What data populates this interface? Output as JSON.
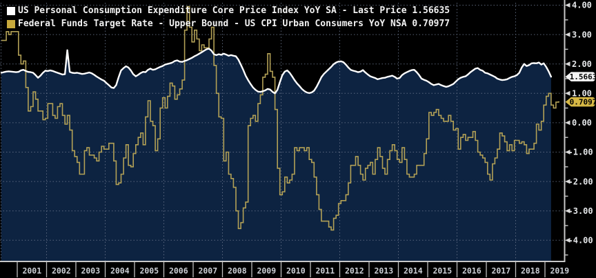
{
  "legend": {
    "items": [
      {
        "label": "US Personal Consumption Expenditure Core Price Index YoY SA - Last Price 1.56635",
        "swatch_color": "#ffffff"
      },
      {
        "label": "Federal Funds Target Rate - Upper Bound - US CPI Urban Consumers YoY NSA 0.70977",
        "swatch_color": "#c7a93c"
      }
    ]
  },
  "right_axis": {
    "tick_labels": [
      "4.00",
      "3.00",
      "2.00",
      "1.00",
      "0.00",
      "-1.00",
      "-2.00",
      "-3.00",
      "-4.00"
    ],
    "tick_values": [
      4,
      3,
      2,
      1,
      0,
      -1,
      -2,
      -3,
      -4
    ],
    "minor_tick_values": [
      3.5,
      2.5,
      1.5,
      0.5,
      -0.5,
      -1.5,
      -2.5,
      -3.5,
      -4.5
    ],
    "badges": [
      {
        "text": "1.5663",
        "value": 1.56635,
        "bg": "#f4f4f4",
        "fg": "#000000"
      },
      {
        "text": "0.7097",
        "value": 0.70977,
        "bg": "#d6b845",
        "fg": "#000000"
      }
    ]
  },
  "x_axis": {
    "year_labels": [
      "2001",
      "2002",
      "2003",
      "2004",
      "2005",
      "2006",
      "2007",
      "2008",
      "2009",
      "2010",
      "2011",
      "2012",
      "2013",
      "2014",
      "2015",
      "2016",
      "2017",
      "2018",
      "2019"
    ],
    "gridline_years": [
      2002,
      2004,
      2006,
      2008,
      2010,
      2012,
      2014,
      2016,
      2018
    ]
  },
  "colors": {
    "background": "#000000",
    "area_fill": "#0d2341",
    "white_line": "#ffffff",
    "gold_line": "#b3a156",
    "gridline": "#68748a",
    "axis_line": "#c8c8c8",
    "axis_text": "#e4e6e8",
    "year_text": "#ccd0d6"
  },
  "chart_data": {
    "type": "line",
    "title": "",
    "ylim": [
      -4.7,
      4.1
    ],
    "y_tick_step": 1,
    "x_range_years": [
      2000.45,
      2019.6
    ],
    "grid": "dotted",
    "legend_position": "top-left",
    "series": [
      {
        "name": "US Personal Consumption Expenditure Core Price Index YoY SA",
        "last_price": 1.56635,
        "axis_badge": "1.5663",
        "style": "line_area",
        "color": "#ffffff",
        "fill": "#0d2341",
        "start_month": "2000-06",
        "freq": "monthly",
        "values": [
          1.7,
          1.72,
          1.74,
          1.75,
          1.74,
          1.73,
          1.72,
          1.73,
          1.78,
          1.8,
          1.76,
          1.73,
          1.72,
          1.7,
          1.62,
          1.53,
          1.6,
          1.7,
          1.77,
          1.76,
          1.78,
          1.76,
          1.73,
          1.7,
          1.67,
          1.64,
          1.65,
          2.47,
          1.73,
          1.7,
          1.69,
          1.7,
          1.68,
          1.66,
          1.67,
          1.69,
          1.71,
          1.68,
          1.63,
          1.57,
          1.52,
          1.47,
          1.43,
          1.35,
          1.28,
          1.2,
          1.18,
          1.28,
          1.55,
          1.78,
          1.86,
          1.92,
          1.88,
          1.78,
          1.65,
          1.58,
          1.63,
          1.69,
          1.73,
          1.72,
          1.8,
          1.84,
          1.8,
          1.82,
          1.86,
          1.9,
          1.93,
          1.98,
          2.0,
          2.02,
          2.05,
          2.1,
          2.12,
          2.08,
          2.07,
          2.1,
          2.13,
          2.17,
          2.21,
          2.26,
          2.3,
          2.35,
          2.4,
          2.45,
          2.5,
          2.52,
          2.45,
          2.33,
          2.3,
          2.33,
          2.31,
          2.35,
          2.32,
          2.28,
          2.3,
          2.28,
          2.26,
          2.15,
          1.98,
          1.8,
          1.6,
          1.45,
          1.32,
          1.2,
          1.12,
          1.06,
          1.05,
          1.07,
          1.1,
          1.15,
          1.13,
          1.05,
          1.0,
          1.12,
          1.38,
          1.62,
          1.74,
          1.78,
          1.7,
          1.58,
          1.45,
          1.34,
          1.25,
          1.15,
          1.08,
          1.03,
          1.01,
          1.03,
          1.09,
          1.22,
          1.38,
          1.55,
          1.66,
          1.74,
          1.82,
          1.9,
          1.99,
          2.05,
          2.08,
          2.09,
          2.06,
          1.98,
          1.88,
          1.8,
          1.77,
          1.75,
          1.72,
          1.74,
          1.79,
          1.71,
          1.64,
          1.58,
          1.55,
          1.52,
          1.48,
          1.5,
          1.52,
          1.53,
          1.56,
          1.58,
          1.6,
          1.56,
          1.5,
          1.52,
          1.62,
          1.68,
          1.72,
          1.76,
          1.79,
          1.8,
          1.72,
          1.62,
          1.5,
          1.46,
          1.43,
          1.38,
          1.32,
          1.28,
          1.3,
          1.32,
          1.28,
          1.25,
          1.22,
          1.24,
          1.28,
          1.32,
          1.4,
          1.48,
          1.53,
          1.56,
          1.58,
          1.64,
          1.72,
          1.78,
          1.84,
          1.86,
          1.8,
          1.77,
          1.7,
          1.68,
          1.64,
          1.6,
          1.56,
          1.5,
          1.47,
          1.45,
          1.46,
          1.48,
          1.52,
          1.56,
          1.58,
          1.62,
          1.7,
          1.88,
          2.0,
          1.93,
          1.96,
          2.02,
          2.03,
          2.02,
          2.05,
          1.98,
          2.02,
          1.9,
          1.75,
          1.56635
        ]
      },
      {
        "name": "Federal Funds Target Rate - Upper Bound - US CPI Urban Consumers YoY NSA",
        "last_price": 0.70977,
        "axis_badge": "0.7097",
        "style": "step",
        "color": "#b3a156",
        "start_month": "2000-06",
        "freq": "monthly",
        "values": [
          2.8,
          2.8,
          3.1,
          3.0,
          3.1,
          3.1,
          3.1,
          2.3,
          2.0,
          2.1,
          1.2,
          0.4,
          0.55,
          1.05,
          0.8,
          0.4,
          0.4,
          0.1,
          0.15,
          0.65,
          0.65,
          0.25,
          0.15,
          0.55,
          0.65,
          0.25,
          -0.05,
          0.25,
          -0.25,
          -0.95,
          -1.15,
          -1.35,
          -1.75,
          -1.75,
          -0.95,
          -0.85,
          -1.1,
          -1.1,
          -1.2,
          -1.3,
          -1.0,
          -0.8,
          -0.9,
          -0.9,
          -0.7,
          -0.7,
          -1.3,
          -2.1,
          -2.05,
          -1.75,
          -1.2,
          -0.75,
          -1.45,
          -1.5,
          -1.05,
          -0.75,
          -0.5,
          -0.35,
          -0.75,
          0.2,
          0.75,
          0.05,
          -0.1,
          -0.95,
          -0.55,
          0.5,
          0.85,
          0.5,
          0.9,
          1.35,
          1.25,
          0.8,
          0.95,
          1.15,
          1.45,
          3.15,
          3.95,
          3.25,
          2.75,
          3.15,
          2.85,
          2.45,
          2.65,
          2.55,
          2.55,
          2.85,
          3.25,
          1.95,
          1.0,
          0.2,
          0.15,
          -1.3,
          -1.0,
          -1.75,
          -1.9,
          -2.2,
          -3.0,
          -3.6,
          -3.4,
          -2.9,
          -2.7,
          -0.1,
          0.15,
          0.25,
          0.05,
          0.65,
          0.95,
          1.55,
          1.65,
          2.35,
          1.75,
          1.55,
          0.45,
          -1.55,
          -2.45,
          -2.35,
          -1.85,
          -2.05,
          -1.95,
          -1.75,
          -0.85,
          -0.95,
          -0.85,
          -0.85,
          -0.95,
          -0.85,
          -1.25,
          -1.35,
          -1.85,
          -2.45,
          -2.95,
          -3.35,
          -3.35,
          -3.35,
          -3.55,
          -3.65,
          -3.25,
          -3.15,
          -2.75,
          -2.65,
          -2.65,
          -2.45,
          -2.05,
          -1.45,
          -1.45,
          -1.15,
          -1.45,
          -1.75,
          -1.95,
          -1.55,
          -1.45,
          -1.35,
          -1.75,
          -1.25,
          -0.85,
          -1.15,
          -1.55,
          -1.75,
          -1.25,
          -0.95,
          -0.75,
          -0.95,
          -1.25,
          -1.35,
          -0.85,
          -1.25,
          -1.75,
          -1.85,
          -1.85,
          -1.75,
          -1.45,
          -1.45,
          -1.45,
          -1.05,
          -0.55,
          0.35,
          0.25,
          0.35,
          0.45,
          0.25,
          0.15,
          0.05,
          0.05,
          0.25,
          0.05,
          -0.25,
          -0.2,
          -0.9,
          -0.5,
          -0.4,
          -0.6,
          -0.5,
          -0.5,
          -0.3,
          -0.6,
          -1.0,
          -1.1,
          -1.2,
          -1.35,
          -1.75,
          -1.95,
          -1.4,
          -1.2,
          -0.9,
          -0.35,
          -0.45,
          -0.65,
          -0.95,
          -0.75,
          -0.95,
          -0.6,
          -0.6,
          -0.7,
          -0.65,
          -0.75,
          -1.05,
          -0.9,
          -0.9,
          -0.7,
          -0.05,
          -0.25,
          0.05,
          0.6,
          0.9,
          1.0,
          0.6,
          0.5,
          0.7,
          0.70977
        ]
      }
    ]
  }
}
